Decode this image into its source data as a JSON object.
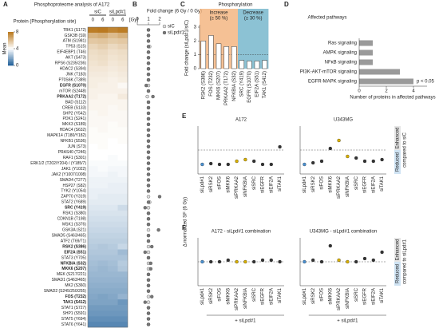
{
  "panel_a": {
    "letter": "A",
    "title": "Phosphoproteome analysis of A172",
    "row_header": "Protein (Phosphorylation site)",
    "column_groups": [
      "siC",
      "siLpd#1"
    ],
    "columns": [
      "0",
      "6",
      "0",
      "6"
    ],
    "unit": "[Gy]",
    "colorbar": {
      "title": "Mean",
      "lim": [
        0,
        8
      ],
      "ticks": [
        0,
        4,
        8
      ]
    },
    "rows": [
      {
        "label": "TBK1 (S172)",
        "values": [
          7.8,
          7.9,
          7.6,
          7.8
        ]
      },
      {
        "label": "GSK3B (S9)",
        "values": [
          6.2,
          6.4,
          6.0,
          6.3
        ]
      },
      {
        "label": "ATM (S1981)",
        "values": [
          5.6,
          5.7,
          5.5,
          5.6
        ]
      },
      {
        "label": "TP53 (S15)",
        "values": [
          5.2,
          5.4,
          5.1,
          5.3
        ]
      },
      {
        "label": "EIF4EBP1 (T46)",
        "values": [
          5.0,
          5.1,
          4.9,
          5.0
        ]
      },
      {
        "label": "AKT (S473)",
        "values": [
          4.9,
          5.0,
          4.8,
          4.9
        ]
      },
      {
        "label": "RPS6 (S235/236)",
        "values": [
          4.8,
          4.9,
          4.7,
          4.8
        ]
      },
      {
        "label": "HDAC2 (S394)",
        "values": [
          4.7,
          4.7,
          4.6,
          4.7
        ]
      },
      {
        "label": "JNK (T183)",
        "values": [
          4.6,
          4.6,
          4.5,
          4.6
        ]
      },
      {
        "label": "P70S6K (T389)",
        "values": [
          4.5,
          4.5,
          4.4,
          4.5
        ]
      },
      {
        "label": "EGFR (S1070)",
        "values": [
          4.5,
          4.4,
          4.4,
          4.2
        ],
        "color": "#2c5aa0"
      },
      {
        "label": "mTOR (S2448)",
        "values": [
          4.4,
          4.4,
          4.4,
          4.4
        ]
      },
      {
        "label": "PRKAA2 (T172)",
        "values": [
          4.4,
          4.3,
          4.3,
          4.6
        ],
        "color": "#c9a000"
      },
      {
        "label": "BAD (S112)",
        "values": [
          4.3,
          4.3,
          4.3,
          4.3
        ]
      },
      {
        "label": "CREB (S133)",
        "values": [
          4.3,
          4.3,
          4.2,
          4.3
        ]
      },
      {
        "label": "SHP2 (Y542)",
        "values": [
          4.2,
          4.3,
          4.2,
          4.2
        ]
      },
      {
        "label": "PDK1 (S241)",
        "values": [
          4.2,
          4.2,
          4.2,
          4.2
        ]
      },
      {
        "label": "MKK3 (S189)",
        "values": [
          4.2,
          4.2,
          4.1,
          4.2
        ]
      },
      {
        "label": "HDAC4 (S632)",
        "values": [
          4.1,
          4.2,
          4.1,
          4.1
        ]
      },
      {
        "label": "MAPK14 (T180/Y182)",
        "values": [
          4.1,
          4.1,
          4.1,
          4.1
        ]
      },
      {
        "label": "NFKB1 (S536)",
        "values": [
          4.1,
          4.1,
          4.0,
          4.1
        ]
      },
      {
        "label": "JUN (S73)",
        "values": [
          4.0,
          4.1,
          4.0,
          4.0
        ]
      },
      {
        "label": "PRAS40 (T246)",
        "values": [
          4.0,
          4.0,
          4.0,
          4.0
        ]
      },
      {
        "label": "RAF1 (S301)",
        "values": [
          4.0,
          4.0,
          3.9,
          4.0
        ]
      },
      {
        "label": "ERK1/2 (T202/Y204) / (Y185/7)",
        "values": [
          3.9,
          3.9,
          3.9,
          3.9
        ]
      },
      {
        "label": "JAK1 (Y1022)",
        "values": [
          3.8,
          3.9,
          3.8,
          3.8
        ]
      },
      {
        "label": "JAK2 (Y1007/1008)",
        "values": [
          3.8,
          3.8,
          3.7,
          3.8
        ]
      },
      {
        "label": "SMAD4 (T277)",
        "values": [
          3.7,
          3.7,
          3.7,
          3.7
        ]
      },
      {
        "label": "HSP27 (S82)",
        "values": [
          3.7,
          3.7,
          3.6,
          3.6
        ]
      },
      {
        "label": "TYK2 (Y1054)",
        "values": [
          3.6,
          3.6,
          3.6,
          3.6
        ]
      },
      {
        "label": "ZAP70 (Y319)",
        "values": [
          3.6,
          3.5,
          3.5,
          3.5
        ]
      },
      {
        "label": "STAT2 (Y689)",
        "values": [
          3.5,
          3.5,
          3.5,
          3.5
        ]
      },
      {
        "label": "SRC (Y419)",
        "values": [
          3.4,
          3.4,
          3.4,
          3.1
        ],
        "color": "#2c5aa0"
      },
      {
        "label": "RSK1 (S380)",
        "values": [
          3.3,
          3.3,
          3.3,
          3.3
        ]
      },
      {
        "label": "CDKN1B (T198)",
        "values": [
          3.2,
          3.2,
          3.2,
          3.2
        ]
      },
      {
        "label": "MSK1 (S376)",
        "values": [
          3.1,
          3.1,
          3.1,
          3.1
        ]
      },
      {
        "label": "GSK3A (S21)",
        "values": [
          3.0,
          3.0,
          3.0,
          3.0
        ]
      },
      {
        "label": "SMAD5 (S463/465)",
        "values": [
          2.9,
          2.9,
          2.9,
          2.9
        ]
      },
      {
        "label": "ATF2 (T69/71)",
        "values": [
          2.8,
          2.8,
          2.8,
          2.8
        ]
      },
      {
        "label": "RSK2 (S386)",
        "values": [
          2.7,
          2.6,
          2.7,
          3.0
        ],
        "color": "#c9a000"
      },
      {
        "label": "EIF2A (S51)",
        "values": [
          2.6,
          2.6,
          2.6,
          2.3
        ],
        "color": "#2c5aa0"
      },
      {
        "label": "STAT3 (Y705)",
        "values": [
          2.5,
          2.5,
          2.5,
          2.5
        ]
      },
      {
        "label": "NFKBIA (S32)",
        "values": [
          2.4,
          2.3,
          2.4,
          2.7
        ],
        "color": "#c9a000"
      },
      {
        "label": "MKK6 (S207)",
        "values": [
          2.3,
          2.2,
          2.3,
          2.6
        ],
        "color": "#c9a000"
      },
      {
        "label": "MEK (S217/221)",
        "values": [
          2.2,
          2.2,
          2.2,
          2.2
        ]
      },
      {
        "label": "SMAD1 (S463/465)",
        "values": [
          2.1,
          2.1,
          2.1,
          2.1
        ]
      },
      {
        "label": "MK2 (S360)",
        "values": [
          2.0,
          2.0,
          2.0,
          2.0
        ]
      },
      {
        "label": "SMAD2 (S245/250/255)",
        "values": [
          1.9,
          1.9,
          1.9,
          1.9
        ]
      },
      {
        "label": "FOS (T232)",
        "values": [
          1.8,
          1.7,
          1.8,
          2.1
        ],
        "color": "#c9a000"
      },
      {
        "label": "TAK1 (S412)",
        "values": [
          1.7,
          1.7,
          1.7,
          1.4
        ],
        "color": "#2c5aa0"
      },
      {
        "label": "STAT1 (S727)",
        "values": [
          1.5,
          1.5,
          1.5,
          1.5
        ]
      },
      {
        "label": "SHP1 (S591)",
        "values": [
          1.4,
          1.4,
          1.4,
          1.4
        ]
      },
      {
        "label": "STAT5 (Y694)",
        "values": [
          1.2,
          1.2,
          1.2,
          1.2
        ]
      },
      {
        "label": "STAT6 (Y641)",
        "values": [
          1.0,
          1.0,
          1.0,
          1.0
        ]
      }
    ]
  },
  "panel_b": {
    "letter": "B",
    "title": "Fold change (6 Gy / 0 Gy)",
    "xlim": [
      0,
      2
    ],
    "xticks": [
      0,
      1,
      2
    ],
    "series": [
      {
        "name": "siC",
        "color": "#dddddd",
        "values": [
          1.0,
          1.0,
          1.0,
          1.1,
          1.0,
          1.0,
          1.0,
          1.0,
          1.0,
          1.0,
          1.0,
          1.0,
          0.9,
          1.0,
          1.0,
          1.0,
          1.0,
          1.0,
          1.0,
          1.0,
          1.0,
          1.0,
          1.0,
          1.0,
          1.0,
          1.0,
          1.0,
          1.0,
          1.0,
          1.0,
          1.0,
          1.1,
          1.0,
          1.0,
          1.0,
          1.0,
          1.0,
          1.0,
          1.0,
          1.0,
          1.0,
          1.0,
          1.0,
          1.0,
          1.0,
          1.0,
          1.0,
          1.0,
          1.0,
          1.0,
          1.0,
          1.0,
          1.0,
          1.0
        ]
      },
      {
        "name": "siLpd#1",
        "color": "#777777",
        "values": [
          1.0,
          1.0,
          1.0,
          1.0,
          1.0,
          1.0,
          1.0,
          1.0,
          1.0,
          1.0,
          0.8,
          1.0,
          1.4,
          1.0,
          1.0,
          1.0,
          1.0,
          1.0,
          1.0,
          1.0,
          1.0,
          1.0,
          1.0,
          1.0,
          1.0,
          1.0,
          1.0,
          1.0,
          1.0,
          1.0,
          2.0,
          1.0,
          0.7,
          1.0,
          1.0,
          1.0,
          1.9,
          1.0,
          1.0,
          1.3,
          0.7,
          1.0,
          1.2,
          1.2,
          1.0,
          1.0,
          1.0,
          1.0,
          1.3,
          0.7,
          1.0,
          1.0,
          1.0,
          1.0
        ]
      }
    ]
  },
  "panel_c": {
    "letter": "C",
    "title": "Phosphorylation",
    "ylabel": "Fold change (siLpd#1/siC)",
    "groups": [
      {
        "name": "Increase",
        "note": "(≥ 50 %)",
        "color": "#f3b27a",
        "count": 5
      },
      {
        "name": "Decrease",
        "note": "(≥ 30 %)",
        "color": "#6fb3c9",
        "count": 4
      }
    ],
    "categories": [
      "RSK2 (S386)",
      "FOS (T232)",
      "MKK6 (S207)",
      "PRKAA2 (T172)",
      "NFKBIA (S32)",
      "SRC (Y419)",
      "EGFR (S1070)",
      "EIF2A (S51)",
      "TAK1 (S412)"
    ],
    "values": [
      2.0,
      2.4,
      1.8,
      1.6,
      1.6,
      0.6,
      0.55,
      0.55,
      0.6
    ],
    "ylim": [
      0,
      3
    ],
    "yticks": [
      0,
      1,
      2,
      3
    ]
  },
  "panel_d": {
    "letter": "D",
    "title": "Affected pathways",
    "xlabel": "Number of proteins in affected pathways",
    "categories": [
      "Ras signaling",
      "AMPK signaling",
      "NFκB signaling",
      "PI3K-AKT-mTOR signaling",
      "EGFR-MAPK signaling"
    ],
    "values": [
      1,
      1,
      1,
      3,
      4
    ],
    "xlim": [
      0,
      5
    ],
    "xticks": [
      0,
      2,
      4
    ],
    "color": "#9a9a9a",
    "annotation": "p < 0.05"
  },
  "panels_ef": {
    "ylabel": "Δ normalized SF (6 Gy)",
    "ylim": [
      -1.5,
      1.5
    ],
    "combination_label": "+ siLpd#1",
    "categories": [
      "siLpd#1",
      "siRSK2",
      "siFOS",
      "siMKK6",
      "siPRKAA2",
      "siNFKBIA",
      "siSRC",
      "siEGFR",
      "siEIF2A",
      "siTAK1"
    ],
    "category_colors": [
      "#4a90d0",
      "#333333",
      "#333333",
      "#333333",
      "#d9b000",
      "#d9b000",
      "#333333",
      "#333333",
      "#333333",
      "#333333"
    ],
    "panels": [
      {
        "letter": "E",
        "reference": "compared to siC",
        "enhanced": "Enhanced",
        "reduced": "Reduced",
        "plots": [
          {
            "title": "A172",
            "values": [
              -0.9,
              -0.85,
              -0.9,
              -0.9,
              -0.7,
              -0.6,
              -0.7,
              -0.9,
              -0.9,
              0.2
            ]
          },
          {
            "title": "U343MG",
            "values": [
              -0.9,
              -0.8,
              -0.7,
              0.1,
              0.6,
              -0.4,
              -0.5,
              -0.7,
              -0.7,
              -0.6
            ]
          }
        ]
      },
      {
        "letter": "F",
        "reference": "compared to siLpd#1",
        "enhanced": "Enhanced",
        "reduced": "Reduced",
        "plots": [
          {
            "title": "A172 - siLpd#1 combination",
            "values": [
              0,
              0,
              0,
              0.1,
              0,
              0,
              0,
              0.1,
              0.1,
              0
            ]
          },
          {
            "title": "U343MG - siLpd#1 combination",
            "values": [
              0,
              0.1,
              0,
              1.0,
              0.1,
              0,
              0,
              0.2,
              0.1,
              0.6
            ]
          }
        ]
      }
    ]
  }
}
